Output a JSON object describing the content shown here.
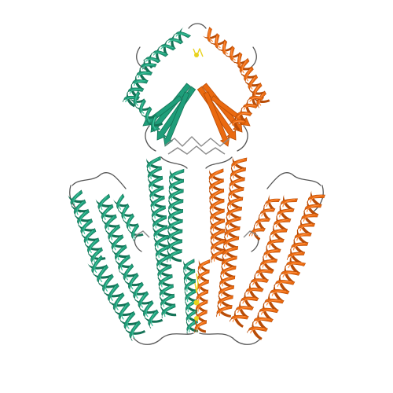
{
  "image": {
    "subject": "protein-structure-ribbon-dimer",
    "colors": {
      "background": "#ffffff",
      "chain_a": "#1f9e7a",
      "chain_a_dark": "#137256",
      "chain_a_light": "#3cc39a",
      "chain_b": "#ea6a10",
      "chain_b_dark": "#b94c06",
      "chain_b_light": "#ff8c3a",
      "loop": "#555555",
      "ligand": "#8a8a8a",
      "ligand_yellow": "#e8d21e"
    }
  }
}
